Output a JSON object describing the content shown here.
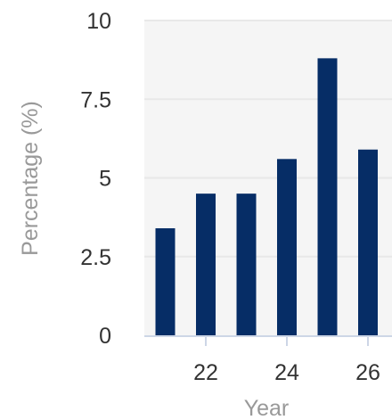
{
  "chart_data": {
    "type": "bar",
    "x": [
      21,
      22,
      23,
      24,
      25,
      26
    ],
    "values": [
      3.4,
      4.5,
      4.5,
      5.6,
      8.8,
      5.9
    ],
    "xticks": [
      "22",
      "24",
      "26"
    ],
    "xtick_values": [
      22,
      24,
      26
    ],
    "yticks": [
      "0",
      "2.5",
      "5",
      "7.5",
      "10"
    ],
    "ytick_values": [
      0,
      2.5,
      5,
      7.5,
      10
    ],
    "xlabel": "Year",
    "ylabel": "Percentage (%)",
    "ylim": [
      0,
      10
    ],
    "grid": "horizontal",
    "colors": {
      "bar": "#062d66",
      "plot_background": "#f5f5f5",
      "grid": "#e8e8e8",
      "axis": "#cdd6e6",
      "tick_text": "#333333",
      "axis_title": "#999999"
    }
  }
}
